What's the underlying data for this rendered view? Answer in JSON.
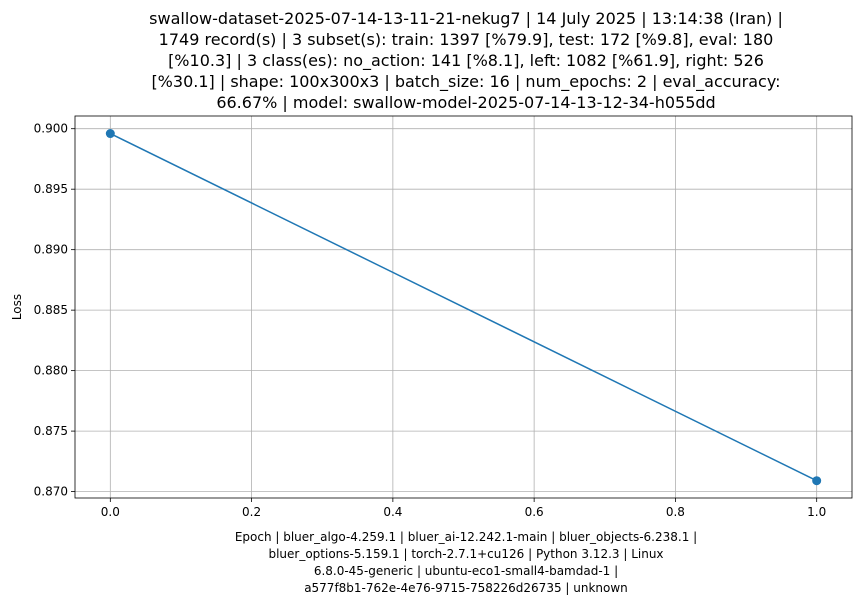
{
  "chart_data": {
    "type": "line",
    "title_lines": [
      "swallow-dataset-2025-07-14-13-11-21-nekug7 | 14 July 2025 | 13:14:38 (Iran) |",
      "1749 record(s) | 3 subset(s): train: 1397 [%79.9], test: 172 [%9.8], eval: 180",
      "[%10.3] | 3 class(es): no_action: 141 [%8.1], left: 1082 [%61.9], right: 526",
      "[%30.1] | shape: 100x300x3 | batch_size: 16 | num_epochs: 2 | eval_accuracy:",
      "66.67% | model: swallow-model-2025-07-14-13-12-34-h055dd"
    ],
    "xlabel_lines": [
      "Epoch | bluer_algo-4.259.1 | bluer_ai-12.242.1-main | bluer_objects-6.238.1 |",
      "bluer_options-5.159.1 | torch-2.7.1+cu126 | Python 3.12.3 | Linux",
      "6.8.0-45-generic | ubuntu-eco1-small4-bamdad-1 |",
      "a577f8b1-762e-4e76-9715-758226d26735 | unknown"
    ],
    "ylabel": "Loss",
    "x": [
      0,
      1
    ],
    "series": [
      {
        "values": [
          0.8996,
          0.8709
        ],
        "color": "#1f77b4"
      }
    ],
    "xlim": [
      -0.05,
      1.05
    ],
    "ylim": [
      0.86947,
      0.90105
    ],
    "x_ticks": [
      0.0,
      0.2,
      0.4,
      0.6,
      0.8,
      1.0
    ],
    "x_tick_labels": [
      "0.0",
      "0.2",
      "0.4",
      "0.6",
      "0.8",
      "1.0"
    ],
    "y_ticks": [
      0.87,
      0.875,
      0.88,
      0.885,
      0.89,
      0.895,
      0.9
    ],
    "y_tick_labels": [
      "0.870",
      "0.875",
      "0.880",
      "0.885",
      "0.890",
      "0.895",
      "0.900"
    ],
    "grid": true,
    "grid_color": "#b0b0b0",
    "axis_color": "#000000"
  }
}
